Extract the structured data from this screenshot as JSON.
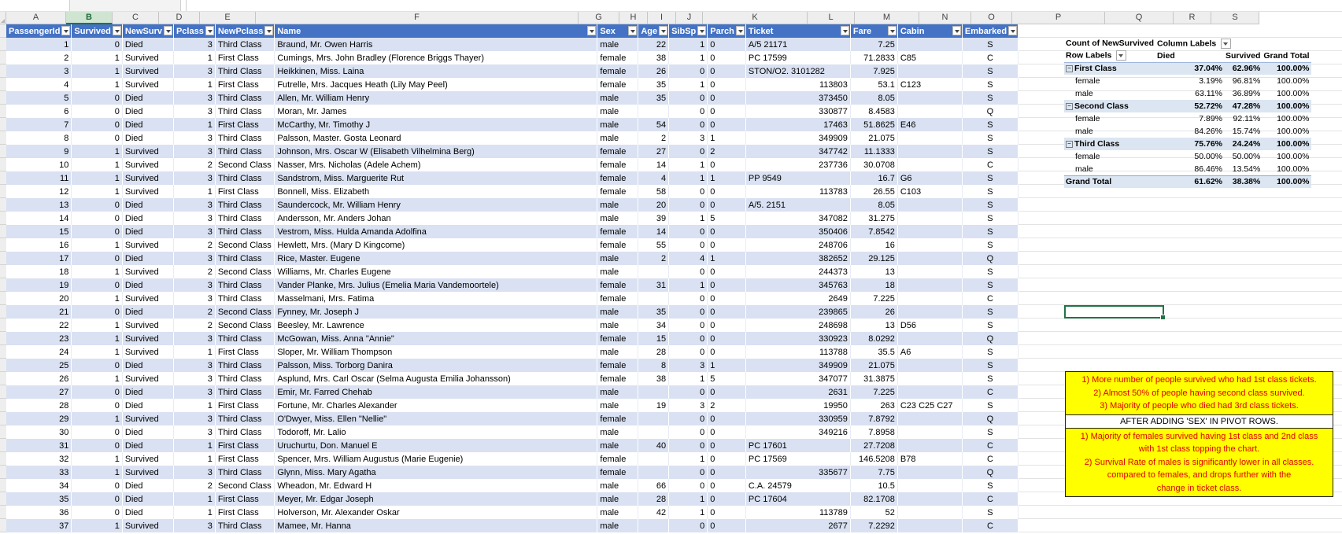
{
  "columns": [
    "A",
    "B",
    "C",
    "D",
    "E",
    "F",
    "G",
    "H",
    "I",
    "J",
    "K",
    "L",
    "M",
    "N",
    "O",
    "P",
    "Q",
    "R",
    "S"
  ],
  "selected_column": "B",
  "table": {
    "headers": [
      "PassengerId",
      "Survived",
      "NewSurv",
      "Pclass",
      "NewPclass",
      "Name",
      "Sex",
      "Age",
      "SibSp",
      "Parch",
      "Ticket",
      "Fare",
      "Cabin",
      "Embarked"
    ],
    "rows": [
      [
        "1",
        "0",
        "Died",
        "3",
        "Third Class",
        "Braund, Mr. Owen Harris",
        "male",
        "22",
        "1",
        "0",
        "A/5 21171",
        "7.25",
        "",
        "S"
      ],
      [
        "2",
        "1",
        "Survived",
        "1",
        "First Class",
        "Cumings, Mrs. John Bradley (Florence Briggs Thayer)",
        "female",
        "38",
        "1",
        "0",
        "PC 17599",
        "71.2833",
        "C85",
        "C"
      ],
      [
        "3",
        "1",
        "Survived",
        "3",
        "Third Class",
        "Heikkinen, Miss. Laina",
        "female",
        "26",
        "0",
        "0",
        "STON/O2. 3101282",
        "7.925",
        "",
        "S"
      ],
      [
        "4",
        "1",
        "Survived",
        "1",
        "First Class",
        "Futrelle, Mrs. Jacques Heath (Lily May Peel)",
        "female",
        "35",
        "1",
        "0",
        "113803",
        "53.1",
        "C123",
        "S"
      ],
      [
        "5",
        "0",
        "Died",
        "3",
        "Third Class",
        "Allen, Mr. William Henry",
        "male",
        "35",
        "0",
        "0",
        "373450",
        "8.05",
        "",
        "S"
      ],
      [
        "6",
        "0",
        "Died",
        "3",
        "Third Class",
        "Moran, Mr. James",
        "male",
        "",
        "0",
        "0",
        "330877",
        "8.4583",
        "",
        "Q"
      ],
      [
        "7",
        "0",
        "Died",
        "1",
        "First Class",
        "McCarthy, Mr. Timothy J",
        "male",
        "54",
        "0",
        "0",
        "17463",
        "51.8625",
        "E46",
        "S"
      ],
      [
        "8",
        "0",
        "Died",
        "3",
        "Third Class",
        "Palsson, Master. Gosta Leonard",
        "male",
        "2",
        "3",
        "1",
        "349909",
        "21.075",
        "",
        "S"
      ],
      [
        "9",
        "1",
        "Survived",
        "3",
        "Third Class",
        "Johnson, Mrs. Oscar W (Elisabeth Vilhelmina Berg)",
        "female",
        "27",
        "0",
        "2",
        "347742",
        "11.1333",
        "",
        "S"
      ],
      [
        "10",
        "1",
        "Survived",
        "2",
        "Second Class",
        "Nasser, Mrs. Nicholas (Adele Achem)",
        "female",
        "14",
        "1",
        "0",
        "237736",
        "30.0708",
        "",
        "C"
      ],
      [
        "11",
        "1",
        "Survived",
        "3",
        "Third Class",
        "Sandstrom, Miss. Marguerite Rut",
        "female",
        "4",
        "1",
        "1",
        "PP 9549",
        "16.7",
        "G6",
        "S"
      ],
      [
        "12",
        "1",
        "Survived",
        "1",
        "First Class",
        "Bonnell, Miss. Elizabeth",
        "female",
        "58",
        "0",
        "0",
        "113783",
        "26.55",
        "C103",
        "S"
      ],
      [
        "13",
        "0",
        "Died",
        "3",
        "Third Class",
        "Saundercock, Mr. William Henry",
        "male",
        "20",
        "0",
        "0",
        "A/5. 2151",
        "8.05",
        "",
        "S"
      ],
      [
        "14",
        "0",
        "Died",
        "3",
        "Third Class",
        "Andersson, Mr. Anders Johan",
        "male",
        "39",
        "1",
        "5",
        "347082",
        "31.275",
        "",
        "S"
      ],
      [
        "15",
        "0",
        "Died",
        "3",
        "Third Class",
        "Vestrom, Miss. Hulda Amanda Adolfina",
        "female",
        "14",
        "0",
        "0",
        "350406",
        "7.8542",
        "",
        "S"
      ],
      [
        "16",
        "1",
        "Survived",
        "2",
        "Second Class",
        "Hewlett, Mrs. (Mary D Kingcome)",
        "female",
        "55",
        "0",
        "0",
        "248706",
        "16",
        "",
        "S"
      ],
      [
        "17",
        "0",
        "Died",
        "3",
        "Third Class",
        "Rice, Master. Eugene",
        "male",
        "2",
        "4",
        "1",
        "382652",
        "29.125",
        "",
        "Q"
      ],
      [
        "18",
        "1",
        "Survived",
        "2",
        "Second Class",
        "Williams, Mr. Charles Eugene",
        "male",
        "",
        "0",
        "0",
        "244373",
        "13",
        "",
        "S"
      ],
      [
        "19",
        "0",
        "Died",
        "3",
        "Third Class",
        "Vander Planke, Mrs. Julius (Emelia Maria Vandemoortele)",
        "female",
        "31",
        "1",
        "0",
        "345763",
        "18",
        "",
        "S"
      ],
      [
        "20",
        "1",
        "Survived",
        "3",
        "Third Class",
        "Masselmani, Mrs. Fatima",
        "female",
        "",
        "0",
        "0",
        "2649",
        "7.225",
        "",
        "C"
      ],
      [
        "21",
        "0",
        "Died",
        "2",
        "Second Class",
        "Fynney, Mr. Joseph J",
        "male",
        "35",
        "0",
        "0",
        "239865",
        "26",
        "",
        "S"
      ],
      [
        "22",
        "1",
        "Survived",
        "2",
        "Second Class",
        "Beesley, Mr. Lawrence",
        "male",
        "34",
        "0",
        "0",
        "248698",
        "13",
        "D56",
        "S"
      ],
      [
        "23",
        "1",
        "Survived",
        "3",
        "Third Class",
        "McGowan, Miss. Anna \"Annie\"",
        "female",
        "15",
        "0",
        "0",
        "330923",
        "8.0292",
        "",
        "Q"
      ],
      [
        "24",
        "1",
        "Survived",
        "1",
        "First Class",
        "Sloper, Mr. William Thompson",
        "male",
        "28",
        "0",
        "0",
        "113788",
        "35.5",
        "A6",
        "S"
      ],
      [
        "25",
        "0",
        "Died",
        "3",
        "Third Class",
        "Palsson, Miss. Torborg Danira",
        "female",
        "8",
        "3",
        "1",
        "349909",
        "21.075",
        "",
        "S"
      ],
      [
        "26",
        "1",
        "Survived",
        "3",
        "Third Class",
        "Asplund, Mrs. Carl Oscar (Selma Augusta Emilia Johansson)",
        "female",
        "38",
        "1",
        "5",
        "347077",
        "31.3875",
        "",
        "S"
      ],
      [
        "27",
        "0",
        "Died",
        "3",
        "Third Class",
        "Emir, Mr. Farred Chehab",
        "male",
        "",
        "0",
        "0",
        "2631",
        "7.225",
        "",
        "C"
      ],
      [
        "28",
        "0",
        "Died",
        "1",
        "First Class",
        "Fortune, Mr. Charles Alexander",
        "male",
        "19",
        "3",
        "2",
        "19950",
        "263",
        "C23 C25 C27",
        "S"
      ],
      [
        "29",
        "1",
        "Survived",
        "3",
        "Third Class",
        "O'Dwyer, Miss. Ellen \"Nellie\"",
        "female",
        "",
        "0",
        "0",
        "330959",
        "7.8792",
        "",
        "Q"
      ],
      [
        "30",
        "0",
        "Died",
        "3",
        "Third Class",
        "Todoroff, Mr. Lalio",
        "male",
        "",
        "0",
        "0",
        "349216",
        "7.8958",
        "",
        "S"
      ],
      [
        "31",
        "0",
        "Died",
        "1",
        "First Class",
        "Uruchurtu, Don. Manuel E",
        "male",
        "40",
        "0",
        "0",
        "PC 17601",
        "27.7208",
        "",
        "C"
      ],
      [
        "32",
        "1",
        "Survived",
        "1",
        "First Class",
        "Spencer, Mrs. William Augustus (Marie Eugenie)",
        "female",
        "",
        "1",
        "0",
        "PC 17569",
        "146.5208",
        "B78",
        "C"
      ],
      [
        "33",
        "1",
        "Survived",
        "3",
        "Third Class",
        "Glynn, Miss. Mary Agatha",
        "female",
        "",
        "0",
        "0",
        "335677",
        "7.75",
        "",
        "Q"
      ],
      [
        "34",
        "0",
        "Died",
        "2",
        "Second Class",
        "Wheadon, Mr. Edward H",
        "male",
        "66",
        "0",
        "0",
        "C.A. 24579",
        "10.5",
        "",
        "S"
      ],
      [
        "35",
        "0",
        "Died",
        "1",
        "First Class",
        "Meyer, Mr. Edgar Joseph",
        "male",
        "28",
        "1",
        "0",
        "PC 17604",
        "82.1708",
        "",
        "C"
      ],
      [
        "36",
        "0",
        "Died",
        "1",
        "First Class",
        "Holverson, Mr. Alexander Oskar",
        "male",
        "42",
        "1",
        "0",
        "113789",
        "52",
        "",
        "S"
      ],
      [
        "37",
        "1",
        "Survived",
        "3",
        "Third Class",
        "Mamee, Mr. Hanna",
        "male",
        "",
        "0",
        "0",
        "2677",
        "7.2292",
        "",
        "C"
      ]
    ]
  },
  "pivot": {
    "count_label": "Count of NewSurvived",
    "column_labels": "Column Labels",
    "row_labels": "Row Labels",
    "col_headers": [
      "Died",
      "Survived",
      "Grand Total"
    ],
    "rows": [
      {
        "label": "First Class",
        "group": true,
        "values": [
          "37.04%",
          "62.96%",
          "100.00%"
        ]
      },
      {
        "label": "female",
        "group": false,
        "values": [
          "3.19%",
          "96.81%",
          "100.00%"
        ]
      },
      {
        "label": "male",
        "group": false,
        "values": [
          "63.11%",
          "36.89%",
          "100.00%"
        ]
      },
      {
        "label": "Second Class",
        "group": true,
        "values": [
          "52.72%",
          "47.28%",
          "100.00%"
        ]
      },
      {
        "label": "female",
        "group": false,
        "values": [
          "7.89%",
          "92.11%",
          "100.00%"
        ]
      },
      {
        "label": "male",
        "group": false,
        "values": [
          "84.26%",
          "15.74%",
          "100.00%"
        ]
      },
      {
        "label": "Third Class",
        "group": true,
        "values": [
          "75.76%",
          "24.24%",
          "100.00%"
        ]
      },
      {
        "label": "female",
        "group": false,
        "values": [
          "50.00%",
          "50.00%",
          "100.00%"
        ]
      },
      {
        "label": "male",
        "group": false,
        "values": [
          "86.46%",
          "13.54%",
          "100.00%"
        ]
      }
    ],
    "grand_total": {
      "label": "Grand Total",
      "values": [
        "61.62%",
        "38.38%",
        "100.00%"
      ]
    }
  },
  "notes": {
    "first": [
      "1) More number of people survived who had 1st class tickets.",
      "2) Almost 50% of people having second class survived.",
      "3) Majority of people who died had 3rd class tickets."
    ],
    "divider": "AFTER ADDING 'SEX' IN PIVOT ROWS.",
    "second": [
      "1) Majority of females survived having 1st class and 2nd class",
      "with 1st class topping the chart.",
      "2) Survival Rate of males is significantly lower in all classes.",
      "compared to females, and drops further with the",
      "change in ticket class."
    ]
  },
  "colors": {
    "table_header": "#4472C4",
    "band": "#D9E1F2",
    "accent": "#217346",
    "note_bg": "#FFFF00",
    "note_text": "#E00000",
    "pivot_band": "#DCE6F2"
  }
}
